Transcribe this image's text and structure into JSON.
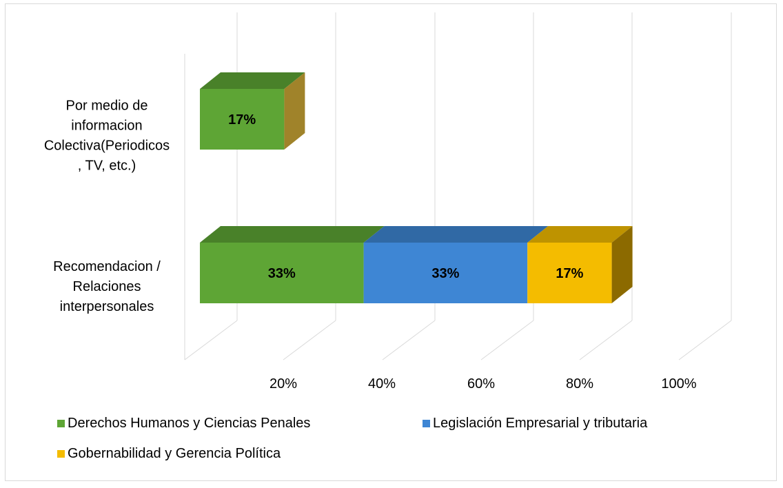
{
  "chart_data": {
    "type": "bar",
    "orientation": "horizontal",
    "stacked": true,
    "style": "3d",
    "categories": [
      [
        "Por medio de",
        "informacion",
        "Colectiva(Periodicos",
        ", TV, etc.)"
      ],
      [
        "Recomendacion /",
        "Relaciones",
        "interpersonales"
      ]
    ],
    "series": [
      {
        "name": "Derechos Humanos y Ciencias Penales",
        "color": "#5ea535",
        "values": [
          0.17,
          0.33
        ],
        "labels": [
          "17%",
          "33%"
        ]
      },
      {
        "name": "Legislación Empresarial y tributaria",
        "color": "#3e86d4",
        "values": [
          0,
          0.33
        ],
        "labels": [
          "",
          "33%"
        ]
      },
      {
        "name": "Gobernabilidad y Gerencia Política",
        "color": "#f4bc00",
        "values": [
          0,
          0.17
        ],
        "labels": [
          "",
          "17%"
        ]
      }
    ],
    "xlim": [
      0,
      1
    ],
    "x_ticks": [
      0.2,
      0.4,
      0.6,
      0.8,
      1.0
    ],
    "x_tick_labels": [
      "20%",
      "40%",
      "60%",
      "80%",
      "100%"
    ],
    "grid": true,
    "legend_position": "bottom"
  }
}
